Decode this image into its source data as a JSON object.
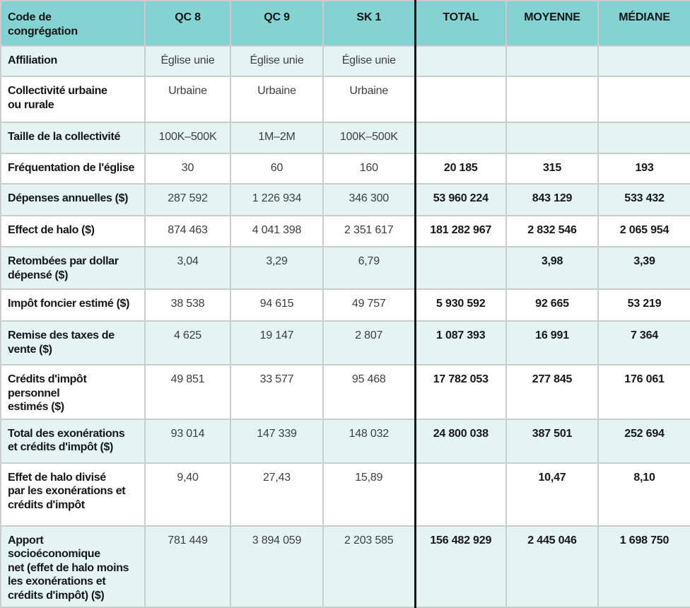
{
  "theme": {
    "header_bg": "#85d2d3",
    "alt_row_bg": "#e4f4f3",
    "border_color": "#c9cecd",
    "divider_color": "#141414"
  },
  "table": {
    "headers": {
      "label": "Code de\ncongrégation",
      "qc8": "QC 8",
      "qc9": "QC 9",
      "sk1": "SK 1",
      "total": "TOTAL",
      "moyenne": "MOYENNE",
      "mediane": "MÉDIANE"
    },
    "rows": [
      {
        "label": "Affiliation",
        "qc8": "Église unie",
        "qc9": "Église unie",
        "sk1": "Église unie",
        "total": "",
        "moyenne": "",
        "mediane": ""
      },
      {
        "label": "Collectivité urbaine\nou rurale",
        "qc8": "Urbaine",
        "qc9": "Urbaine",
        "sk1": "Urbaine",
        "total": "",
        "moyenne": "",
        "mediane": ""
      },
      {
        "label": "Taille de la collectivité",
        "qc8": "100K–500K",
        "qc9": "1M–2M",
        "sk1": "100K–500K",
        "total": "",
        "moyenne": "",
        "mediane": ""
      },
      {
        "label": "Fréquentation de l'église",
        "qc8": "30",
        "qc9": "60",
        "sk1": "160",
        "total": "20 185",
        "moyenne": "315",
        "mediane": "193"
      },
      {
        "label": "Dépenses annuelles ($)",
        "qc8": "287 592",
        "qc9": "1 226 934",
        "sk1": "346 300",
        "total": "53 960 224",
        "moyenne": "843 129",
        "mediane": "533 432"
      },
      {
        "label": "Effect de halo ($)",
        "qc8": "874 463",
        "qc9": "4 041 398",
        "sk1": "2 351 617",
        "total": "181 282 967",
        "moyenne": "2 832 546",
        "mediane": "2 065 954"
      },
      {
        "label": "Retombées par dollar\ndépensé ($)",
        "qc8": "3,04",
        "qc9": "3,29",
        "sk1": "6,79",
        "total": "",
        "moyenne": "3,98",
        "mediane": "3,39"
      },
      {
        "label": "Impôt foncier estimé ($)",
        "qc8": "38 538",
        "qc9": "94 615",
        "sk1": "49 757",
        "total": "5 930 592",
        "moyenne": "92 665",
        "mediane": "53 219"
      },
      {
        "label": "Remise des taxes de\nvente ($)",
        "qc8": "4 625",
        "qc9": "19 147",
        "sk1": "2 807",
        "total": "1 087 393",
        "moyenne": "16 991",
        "mediane": "7 364"
      },
      {
        "label": "Crédits d'impôt personnel\nestimés ($)",
        "qc8": "49 851",
        "qc9": "33 577",
        "sk1": "95 468",
        "total": "17 782 053",
        "moyenne": "277 845",
        "mediane": "176 061"
      },
      {
        "label": "Total des exonérations\net crédits d'impôt ($)",
        "qc8": "93 014",
        "qc9": "147 339",
        "sk1": "148 032",
        "total": "24 800 038",
        "moyenne": "387 501",
        "mediane": "252 694"
      },
      {
        "label": "Effet de halo divisé\npar les exonérations et\ncrédits d'impôt",
        "qc8": "9,40",
        "qc9": "27,43",
        "sk1": "15,89",
        "total": "",
        "moyenne": "10,47",
        "mediane": "8,10"
      },
      {
        "label": "Apport socioéconomique\nnet (effet de halo moins\nles exonérations et\ncrédits d'impôt) ($)",
        "qc8": "781 449",
        "qc9": "3 894 059",
        "sk1": "2 203 585",
        "total": "156 482 929",
        "moyenne": "2 445 046",
        "mediane": "1 698 750"
      }
    ]
  }
}
